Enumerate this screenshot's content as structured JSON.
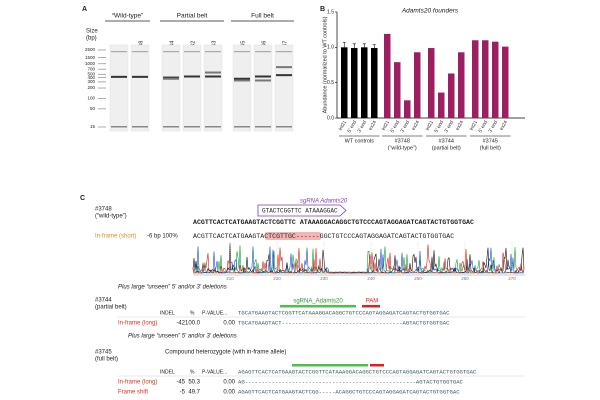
{
  "panel_labels": [
    "A",
    "B",
    "C"
  ],
  "gel": {
    "size_label": "Size",
    "size_unit": "(bp)",
    "log_scale": true,
    "ylim": [
      15,
      2500
    ],
    "ladder": [
      2500,
      1500,
      1000,
      700,
      500,
      400,
      300,
      200,
      100,
      50,
      15
    ],
    "groups": [
      "“Wild-type”",
      "Partial belt",
      "Full belt"
    ],
    "lanes": [
      {
        "name": "WT",
        "bands": [
          420
        ]
      },
      {
        "name": "#3748",
        "bands": [
          420
        ]
      },
      {
        "name": "#3744",
        "bands": [
          400,
          370
        ]
      },
      {
        "name": "#3742",
        "bands": [
          430
        ]
      },
      {
        "name": "#3743",
        "bands": [
          430,
          560
        ]
      },
      {
        "name": "#3745",
        "bands": [
          370,
          330
        ]
      },
      {
        "name": "#3746",
        "bands": [
          430,
          330
        ]
      },
      {
        "name": "#3747",
        "bands": [
          470,
          800
        ]
      }
    ]
  },
  "chart_data": {
    "type": "bar",
    "title": "Adamts20 founders",
    "y_label": "Abundance (normalized to WT controls)",
    "categories": [
      "int21",
      "5' end",
      "3' end",
      "ex24"
    ],
    "series": [
      {
        "name": "WT controls",
        "color": "#000000",
        "values": [
          1.0,
          0.99,
          1.0,
          0.99
        ],
        "errors": [
          0.07,
          0.06,
          0.05,
          0.05
        ]
      },
      {
        "name": "#3748",
        "note": "(“wild-type”)",
        "color": "#9c1f62",
        "values": [
          1.19,
          0.79,
          0.25,
          0.93
        ]
      },
      {
        "name": "#3744",
        "note": "(partial belt)",
        "color": "#9c1f62",
        "values": [
          0.99,
          0.36,
          0.63,
          0.93
        ]
      },
      {
        "name": "#3745",
        "note": "(full belt)",
        "color": "#9c1f62",
        "values": [
          1.1,
          1.1,
          1.08,
          1.01
        ]
      }
    ],
    "ylim": [
      0,
      1.5
    ],
    "yticks": [
      {
        "value": 0,
        "label": "0.0"
      },
      {
        "value": 0.5,
        "label": "0.5"
      },
      {
        "value": 1,
        "label": "1.0"
      },
      {
        "value": 1.5,
        "label": "1.5"
      }
    ]
  },
  "sequencing": {
    "wt": {
      "id": "#3748",
      "desc": "(“wild-type”)",
      "sgrna_label": "sgRNA Adamts20",
      "sgrna_seq": "GTACTCGGTTC     ATAAAGGAC",
      "reference": "ACGTTCACTCATGAAGTACTCGGTTC ATAAAGGACAGGCTGTCCCAGTAGGAGATCAGTACTGTGGTGAC",
      "call_label": "In-frame (short)",
      "call_detail": "-6 bp 100%",
      "read": "ACGTTCACTCATGAAGTACTCGTTGC------GGCTGTCCCAGTAGGAGATCAGTACTGTGGTGAC",
      "xticks": [
        210,
        220,
        230,
        240,
        250,
        260,
        270
      ],
      "note": "Plus large “unseen” 5' and/or 3' deletions"
    },
    "partial": {
      "id": "#3744",
      "desc": "(partial belt)",
      "sgrna_label": "sgRNA_Adamts20",
      "pam_label": "PAM",
      "headers": [
        "INDEL",
        "%",
        "P-VALUE..."
      ],
      "reference": "TGCATGAAGTACTCGGTTCATAAAGGACAGGCTGTCCCAGTAGGAGATCAGTACTGTGGTGAC",
      "rows": [
        {
          "label": "In-frame (long)",
          "indel": "-42",
          "percent": "100.0",
          "pvalue": "0.00",
          "read": "TGCATGAAGTACT------------------------------------AGTACTGTGGTGAC"
        }
      ],
      "note": "Plus large “unseen” 5' and/or 3' deletions"
    },
    "full": {
      "id": "#3745",
      "desc": "(full belt)",
      "title": "Compound heterozygote (with in-frame allele)",
      "headers": [
        "INDEL",
        "%",
        "P-VALUE..."
      ],
      "reference": "AGAGTTCACTCATGAAGTACTCGGTTCATAAAGGACAGGCTGTCCCAGTAGGAGATCAGTACTGTGGTGAC",
      "rows": [
        {
          "label": "In-frame (long)",
          "indel": "-45",
          "percent": "50.3",
          "pvalue": "0.00",
          "read": "AG---------------------------------------------------AGTACTGTGGTGAC"
        },
        {
          "label": "Frame shift",
          "indel": "-5",
          "percent": "49.7",
          "pvalue": "0.00",
          "read": "AGAGTTCACTCATGAAGTACTCGG-----ACAGGCTGTCCCAGTAGGAGATCAGTACTGTGGTGAC"
        }
      ]
    }
  }
}
